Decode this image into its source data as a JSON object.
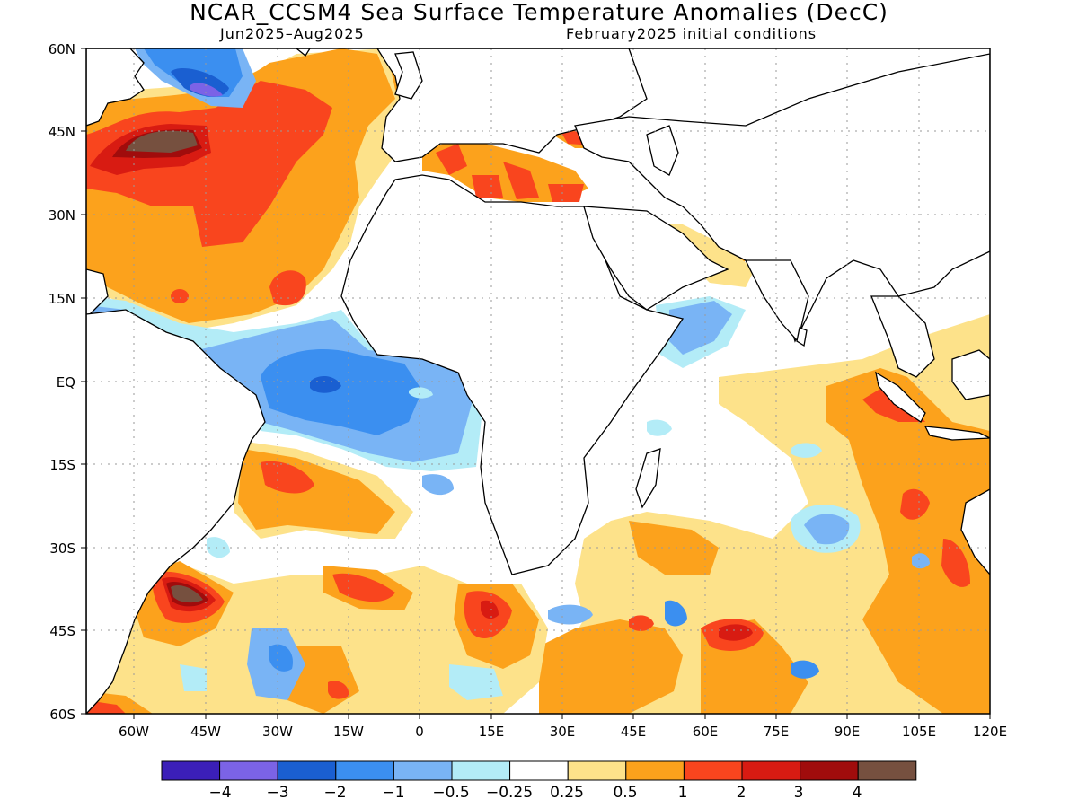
{
  "title": "NCAR_CCSM4 Sea Surface Temperature Anomalies (DecC)",
  "subtitle_left": "Jun2025–Aug2025",
  "subtitle_right": "February2025 initial conditions",
  "lat_labels": [
    "60N",
    "45N",
    "30N",
    "15N",
    "EQ",
    "15S",
    "30S",
    "45S",
    "60S"
  ],
  "lon_labels": [
    "60W",
    "45W",
    "30W",
    "15W",
    "0",
    "15E",
    "30E",
    "45E",
    "60E",
    "75E",
    "90E",
    "105E",
    "120E"
  ],
  "colorbar": {
    "colors": [
      "#3b1fb8",
      "#7b63e6",
      "#1a5fd1",
      "#3b8ff0",
      "#79b4f5",
      "#b3ecf7",
      "#ffffff",
      "#fde28a",
      "#fca21c",
      "#f9451e",
      "#d81b12",
      "#a00c0c",
      "#76503f"
    ],
    "labels": [
      "−4",
      "−3",
      "−2",
      "−1",
      "−0.5",
      "−0.25",
      "0.25",
      "0.5",
      "1",
      "2",
      "3",
      "4"
    ]
  }
}
